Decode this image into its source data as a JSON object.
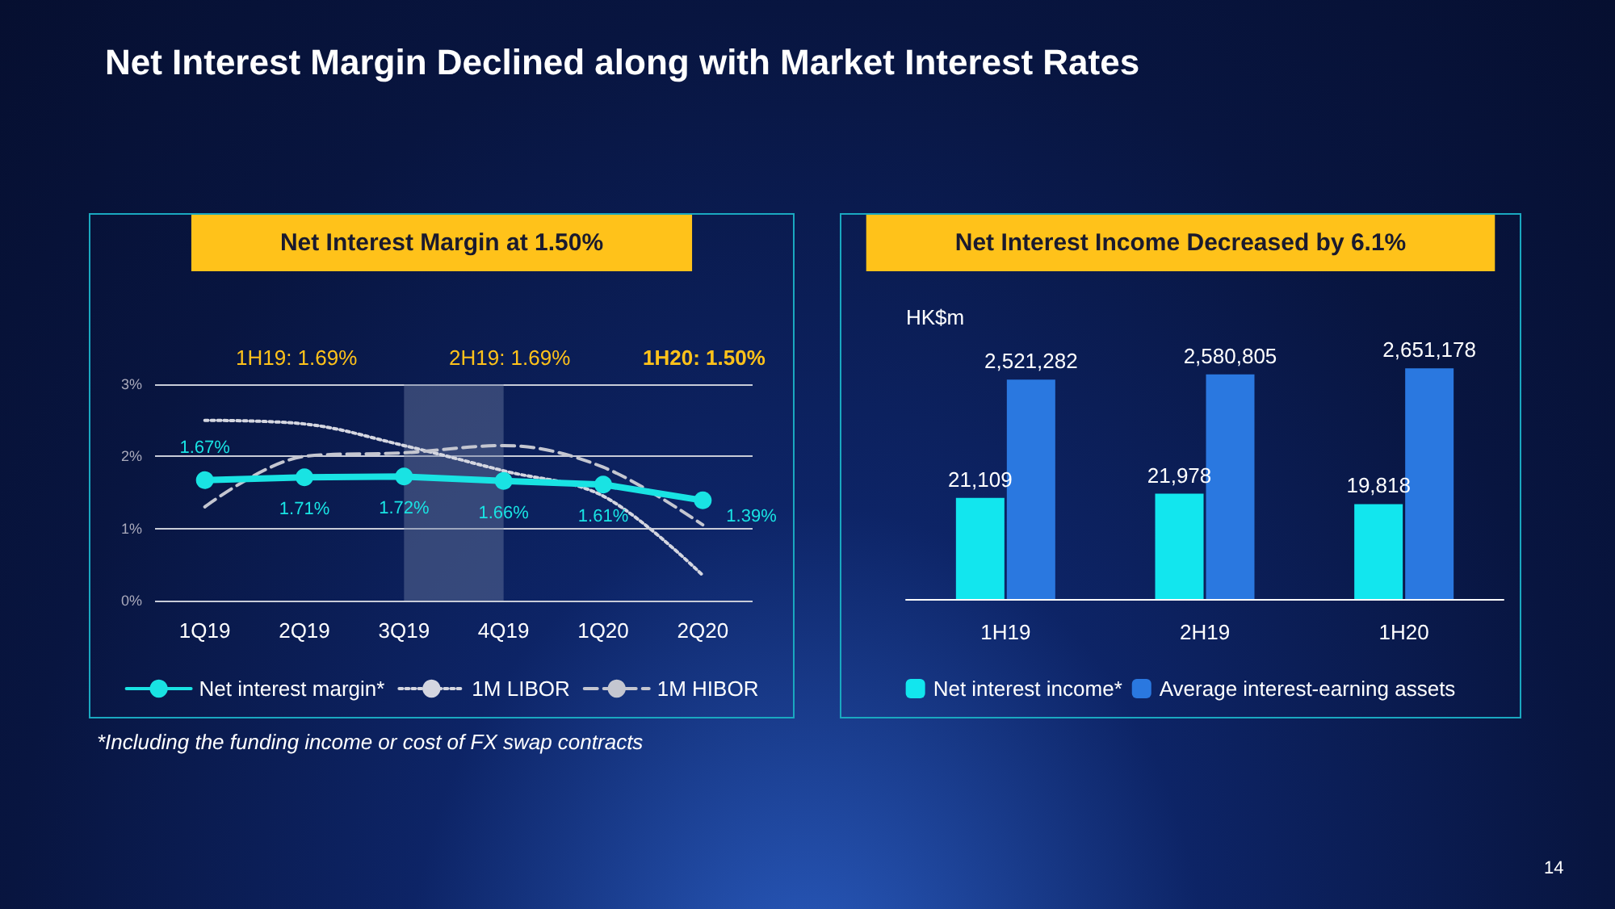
{
  "chart_data": [
    {
      "type": "line",
      "title": "Net Interest Margin at 1.50%",
      "categories": [
        "1Q19",
        "2Q19",
        "3Q19",
        "4Q19",
        "1Q20",
        "2Q20"
      ],
      "annotations": [
        "Net Interest Margin Declined along with Market Interest Rates",
        "1H19: 1.69%",
        "2H19: 1.69%",
        "1H20: 1.50%",
        "*Including the funding income or cost of FX swap contracts"
      ],
      "series": [
        {
          "name": "Net interest margin*",
          "color": "#19e3e3",
          "values": [
            1.67,
            1.71,
            1.72,
            1.66,
            1.61,
            1.39
          ],
          "marker": "circle",
          "line_style": "solid",
          "value_labels": [
            "1.67%",
            "1.71%",
            "1.72%",
            "1.66%",
            "1.61%",
            "1.39%"
          ]
        },
        {
          "name": "1M LIBOR",
          "color": "#d4d6e0",
          "values": [
            2.5,
            2.45,
            2.15,
            1.8,
            1.45,
            0.35
          ],
          "marker": "none",
          "line_style": "dotted"
        },
        {
          "name": "1M HIBOR",
          "color": "#c4c6d0",
          "values": [
            1.3,
            2.0,
            2.05,
            2.15,
            1.85,
            1.05
          ],
          "marker": "none",
          "line_style": "dashed"
        }
      ],
      "ylim": [
        0,
        3
      ],
      "yticks": [
        {
          "value": 0,
          "label": "0%"
        },
        {
          "value": 1,
          "label": "1%"
        },
        {
          "value": 2,
          "label": "2%"
        },
        {
          "value": 3,
          "label": "3%"
        }
      ],
      "bands": [
        {
          "axis": "x",
          "from": "3Q19",
          "to": "4Q19",
          "color": "#6a7aa0"
        }
      ],
      "grid": "y",
      "legend": "bottom"
    },
    {
      "type": "bar",
      "title": "Net Interest Income Decreased by 6.1%",
      "ylabel": "HK$m",
      "categories": [
        "1H19",
        "2H19",
        "1H20"
      ],
      "annotations": [
        "14"
      ],
      "series": [
        {
          "name": "Net interest income*",
          "color": "#12e6ee",
          "values": [
            21109,
            21978,
            19818
          ],
          "value_labels": [
            "21,109",
            "21,978",
            "19,818"
          ]
        },
        {
          "name": "Average interest-earning assets",
          "color": "#2a78e0",
          "values": [
            2521282,
            2580805,
            2651178
          ],
          "value_labels": [
            "2,521,282",
            "2,580,805",
            "2,651,178"
          ],
          "axis": "y2"
        }
      ],
      "tick_labels": "x",
      "grid": false,
      "legend": "bottom"
    }
  ]
}
